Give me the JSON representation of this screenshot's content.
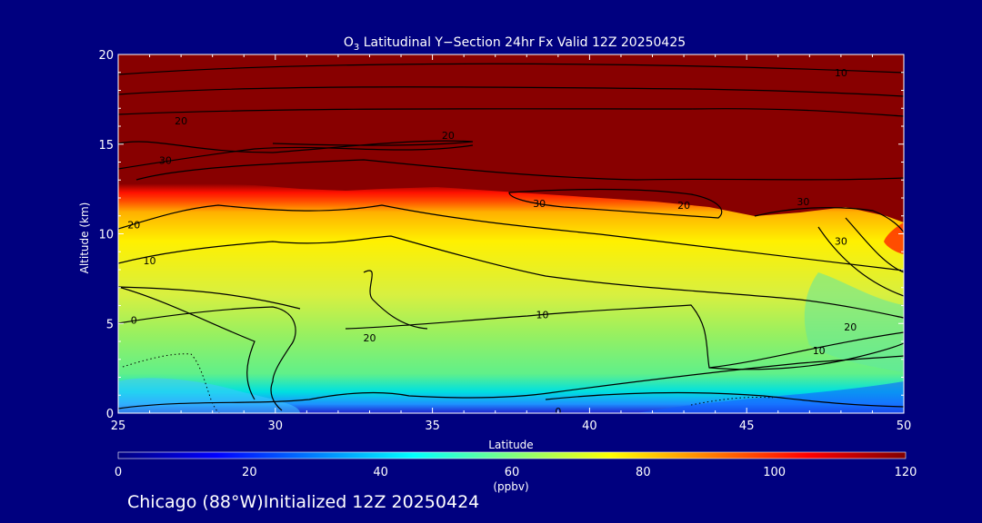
{
  "chart_data": {
    "type": "heatmap",
    "title_prefix": "O",
    "title_subscript": "3",
    "title_suffix": " Latitudinal Y−Section 24hr  Fx Valid 12Z 20250425",
    "xlabel": "Latitude",
    "ylabel": "Altitude (km)",
    "xlim": [
      25,
      50
    ],
    "ylim": [
      0,
      20
    ],
    "x_ticks": [
      "25",
      "30",
      "35",
      "40",
      "45",
      "50"
    ],
    "y_ticks": [
      "0",
      "5",
      "10",
      "15",
      "20"
    ],
    "colorbar": {
      "label": "(ppbv)",
      "range": [
        0,
        120
      ],
      "ticks": [
        "0",
        "20",
        "40",
        "60",
        "80",
        "100",
        "120"
      ],
      "colors": [
        "#00007f",
        "#0000ff",
        "#007fff",
        "#00ffff",
        "#7fff7f",
        "#ffff00",
        "#ff7f00",
        "#ff0000",
        "#7f0000"
      ]
    },
    "contour_labels": [
      {
        "text": "20",
        "lat": 43.0,
        "alt": 11.6
      },
      {
        "text": "30",
        "lat": 48.0,
        "alt": 9.6
      },
      {
        "text": "20",
        "lat": 33.0,
        "alt": 4.2
      },
      {
        "text": "10",
        "lat": 38.5,
        "alt": 5.5
      },
      {
        "text": "10",
        "lat": 26.0,
        "alt": 8.5
      },
      {
        "text": "0",
        "lat": 25.5,
        "alt": 5.2
      },
      {
        "text": "20",
        "lat": 25.5,
        "alt": 10.5
      },
      {
        "text": "30",
        "lat": 26.5,
        "alt": 14.1
      },
      {
        "text": "20",
        "lat": 27.0,
        "alt": 16.3
      },
      {
        "text": "20",
        "lat": 35.5,
        "alt": 15.5
      },
      {
        "text": "30",
        "lat": 38.4,
        "alt": 11.7
      },
      {
        "text": "30",
        "lat": 46.8,
        "alt": 11.8
      },
      {
        "text": "10",
        "lat": 48.0,
        "alt": 19.0
      },
      {
        "text": "20",
        "lat": 48.3,
        "alt": 4.8
      },
      {
        "text": "10",
        "lat": 47.3,
        "alt": 3.5
      },
      {
        "text": "0",
        "lat": 39.0,
        "alt": 0.1
      }
    ]
  },
  "footer": "Chicago (88°W)Initialized 12Z 20250424"
}
